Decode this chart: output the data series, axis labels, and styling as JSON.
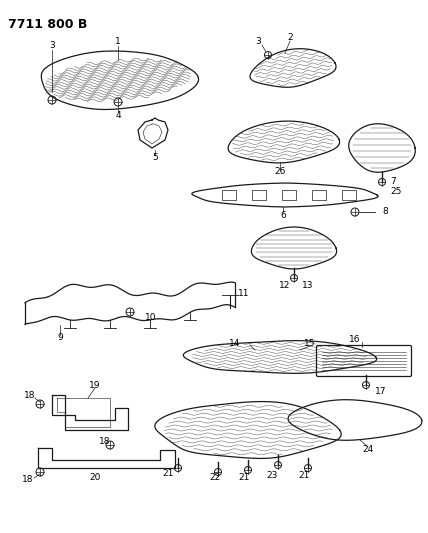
{
  "title": "7711 800 B",
  "background_color": "#ffffff",
  "line_color": "#1a1a1a",
  "text_color": "#000000",
  "title_fontsize": 9,
  "label_fontsize": 6.5,
  "fig_width": 4.28,
  "fig_height": 5.33,
  "dpi": 100
}
